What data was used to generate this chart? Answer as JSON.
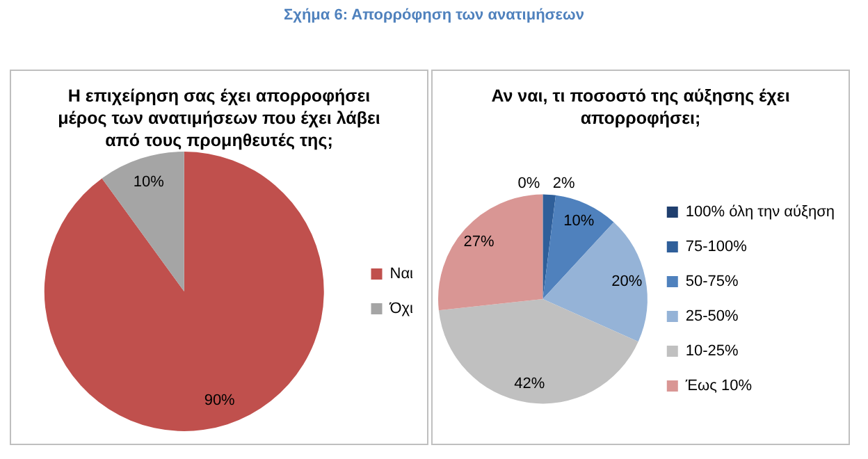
{
  "chart_data": [
    {
      "type": "pie",
      "title": "Η επιχείρηση σας έχει απορροφήσει μέρος των ανατιμήσεων που έχει λάβει από τους προμηθευτές της;",
      "annotations": [
        "Σχήμα 6: Απορρόφηση των ανατιμήσεων"
      ],
      "categories": [
        "Ναι",
        "Όχι"
      ],
      "values": [
        90,
        10
      ],
      "colors": [
        "#c0504d",
        "#a5a5a5"
      ],
      "value_labels": [
        "90%",
        "10%"
      ],
      "legend": "right"
    },
    {
      "type": "pie",
      "title": "Αν ναι, τι ποσοστό της αύξησης έχει απορροφήσει;",
      "categories": [
        "100% όλη την αύξηση",
        "75-100%",
        "50-75%",
        "25-50%",
        "10-25%",
        "Έως 10%"
      ],
      "values": [
        0,
        2,
        10,
        20,
        42,
        27
      ],
      "colors": [
        "#1f3f6e",
        "#2f5f9a",
        "#4f81bd",
        "#95b3d7",
        "#c0c0c0",
        "#d99694"
      ],
      "value_labels": [
        "0%",
        "2%",
        "10%",
        "20%",
        "42%",
        "27%"
      ],
      "legend": "right"
    }
  ]
}
